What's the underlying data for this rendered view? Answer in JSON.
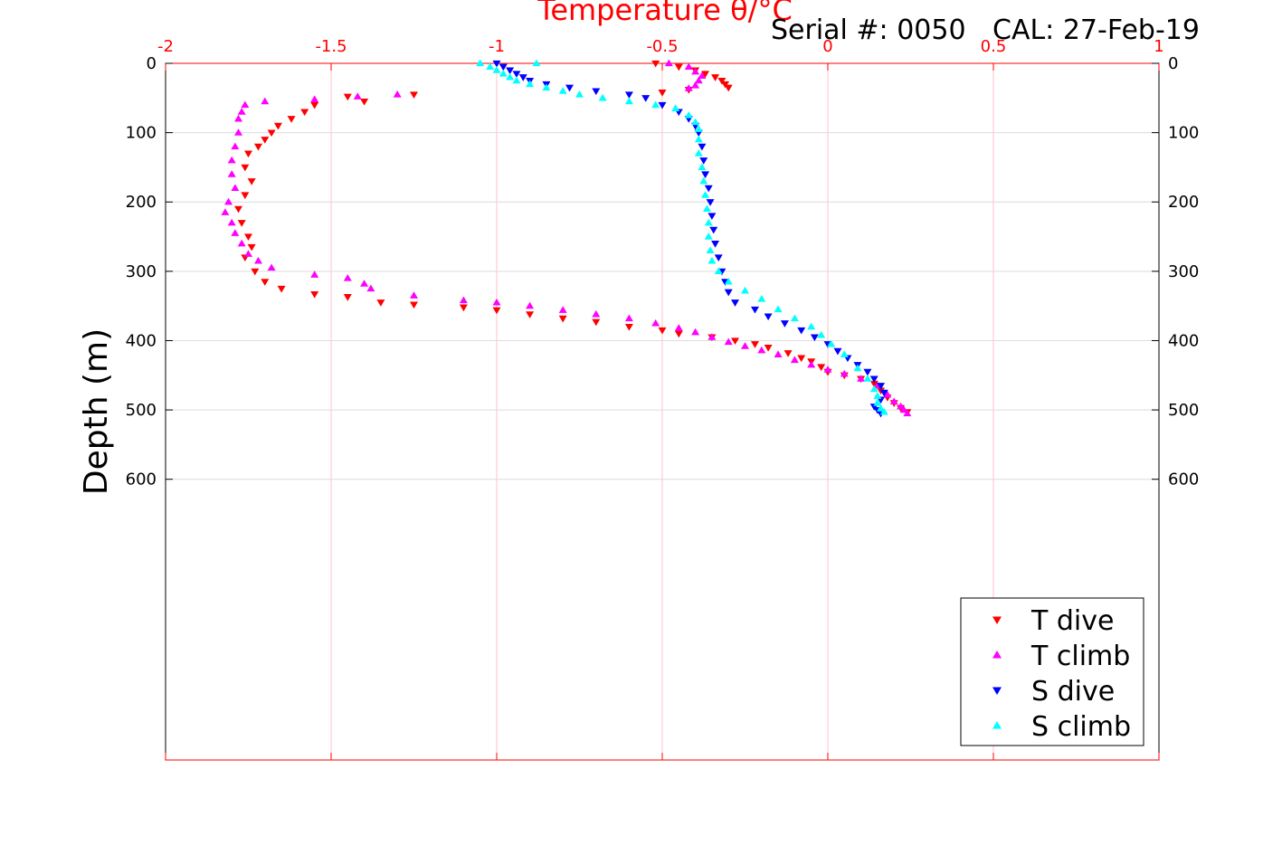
{
  "header": {
    "serial": "Serial #: 0050",
    "cal": "CAL: 27-Feb-19"
  },
  "colors": {
    "t_dive": "#ff0000",
    "t_climb": "#ff00ff",
    "s_dive": "#0000ff",
    "s_climb": "#00ffff",
    "top_axis": "#ff0000",
    "grid_x": "#ffc0cb",
    "grid_y": "#dcdcdc"
  },
  "chart_data": {
    "type": "scatter",
    "title": "Temperature θ/°C",
    "xlabel": "Temperature θ/°C",
    "ylabel": "Depth (m)",
    "xlim": [
      -2,
      1
    ],
    "ylim": [
      0,
      1005
    ],
    "y_reversed": true,
    "x_axis_position": "top",
    "x_ticks": [
      "-2",
      "-1.5",
      "-1",
      "-0.5",
      "0",
      "0.5",
      "1"
    ],
    "x_tick_values": [
      -2,
      -1.5,
      -1,
      -0.5,
      0,
      0.5,
      1
    ],
    "y_ticks": [
      "0",
      "100",
      "200",
      "300",
      "400",
      "500",
      "600"
    ],
    "y_tick_values": [
      0,
      100,
      200,
      300,
      400,
      500,
      600
    ],
    "grid": true,
    "legend_position": "bottom-right",
    "series": [
      {
        "name": "T dive",
        "marker": "triangle-down",
        "points": [
          [
            -0.52,
            0
          ],
          [
            -0.45,
            5
          ],
          [
            -0.4,
            10
          ],
          [
            -0.37,
            15
          ],
          [
            -0.34,
            20
          ],
          [
            -0.32,
            25
          ],
          [
            -0.31,
            30
          ],
          [
            -0.3,
            35
          ],
          [
            -0.42,
            38
          ],
          [
            -0.5,
            42
          ],
          [
            -1.25,
            45
          ],
          [
            -1.45,
            48
          ],
          [
            -1.4,
            55
          ],
          [
            -1.55,
            60
          ],
          [
            -1.58,
            70
          ],
          [
            -1.62,
            80
          ],
          [
            -1.66,
            90
          ],
          [
            -1.68,
            100
          ],
          [
            -1.7,
            110
          ],
          [
            -1.72,
            120
          ],
          [
            -1.75,
            130
          ],
          [
            -1.76,
            150
          ],
          [
            -1.74,
            170
          ],
          [
            -1.76,
            190
          ],
          [
            -1.78,
            210
          ],
          [
            -1.77,
            230
          ],
          [
            -1.75,
            250
          ],
          [
            -1.74,
            265
          ],
          [
            -1.76,
            280
          ],
          [
            -1.73,
            300
          ],
          [
            -1.7,
            315
          ],
          [
            -1.65,
            325
          ],
          [
            -1.55,
            333
          ],
          [
            -1.45,
            337
          ],
          [
            -1.35,
            345
          ],
          [
            -1.25,
            348
          ],
          [
            -1.1,
            352
          ],
          [
            -1.0,
            356
          ],
          [
            -0.9,
            362
          ],
          [
            -0.8,
            368
          ],
          [
            -0.7,
            373
          ],
          [
            -0.6,
            380
          ],
          [
            -0.5,
            385
          ],
          [
            -0.45,
            390
          ],
          [
            -0.35,
            395
          ],
          [
            -0.28,
            400
          ],
          [
            -0.22,
            405
          ],
          [
            -0.18,
            410
          ],
          [
            -0.12,
            418
          ],
          [
            -0.08,
            425
          ],
          [
            -0.05,
            430
          ],
          [
            -0.02,
            438
          ],
          [
            0.0,
            445
          ],
          [
            0.05,
            450
          ],
          [
            0.1,
            455
          ],
          [
            0.14,
            462
          ],
          [
            0.16,
            472
          ],
          [
            0.18,
            482
          ],
          [
            0.2,
            490
          ],
          [
            0.22,
            497
          ],
          [
            0.24,
            503
          ]
        ]
      },
      {
        "name": "T climb",
        "marker": "triangle-up",
        "points": [
          [
            -0.48,
            0
          ],
          [
            -0.42,
            5
          ],
          [
            -0.4,
            12
          ],
          [
            -0.38,
            18
          ],
          [
            -0.39,
            25
          ],
          [
            -0.4,
            32
          ],
          [
            -0.42,
            36
          ],
          [
            -1.3,
            45
          ],
          [
            -1.42,
            48
          ],
          [
            -1.55,
            52
          ],
          [
            -1.7,
            55
          ],
          [
            -1.76,
            60
          ],
          [
            -1.77,
            70
          ],
          [
            -1.78,
            80
          ],
          [
            -1.78,
            100
          ],
          [
            -1.79,
            120
          ],
          [
            -1.8,
            140
          ],
          [
            -1.8,
            160
          ],
          [
            -1.79,
            180
          ],
          [
            -1.81,
            200
          ],
          [
            -1.82,
            215
          ],
          [
            -1.8,
            230
          ],
          [
            -1.79,
            245
          ],
          [
            -1.77,
            260
          ],
          [
            -1.75,
            275
          ],
          [
            -1.72,
            285
          ],
          [
            -1.68,
            295
          ],
          [
            -1.55,
            305
          ],
          [
            -1.45,
            310
          ],
          [
            -1.4,
            318
          ],
          [
            -1.38,
            325
          ],
          [
            -1.25,
            335
          ],
          [
            -1.1,
            342
          ],
          [
            -1.0,
            345
          ],
          [
            -0.9,
            350
          ],
          [
            -0.8,
            356
          ],
          [
            -0.7,
            362
          ],
          [
            -0.6,
            368
          ],
          [
            -0.52,
            375
          ],
          [
            -0.45,
            382
          ],
          [
            -0.4,
            388
          ],
          [
            -0.35,
            395
          ],
          [
            -0.3,
            402
          ],
          [
            -0.25,
            408
          ],
          [
            -0.2,
            414
          ],
          [
            -0.15,
            420
          ],
          [
            -0.1,
            428
          ],
          [
            -0.05,
            435
          ],
          [
            0.0,
            442
          ],
          [
            0.05,
            448
          ],
          [
            0.1,
            455
          ],
          [
            0.15,
            465
          ],
          [
            0.18,
            478
          ],
          [
            0.2,
            488
          ],
          [
            0.22,
            495
          ],
          [
            0.23,
            500
          ],
          [
            0.24,
            505
          ]
        ]
      },
      {
        "name": "S dive",
        "marker": "triangle-down",
        "points": [
          [
            -1.0,
            0
          ],
          [
            -0.98,
            5
          ],
          [
            -0.96,
            10
          ],
          [
            -0.94,
            15
          ],
          [
            -0.92,
            20
          ],
          [
            -0.9,
            25
          ],
          [
            -0.85,
            30
          ],
          [
            -0.78,
            35
          ],
          [
            -0.7,
            40
          ],
          [
            -0.6,
            45
          ],
          [
            -0.55,
            50
          ],
          [
            -0.5,
            60
          ],
          [
            -0.45,
            70
          ],
          [
            -0.42,
            80
          ],
          [
            -0.4,
            90
          ],
          [
            -0.39,
            100
          ],
          [
            -0.38,
            120
          ],
          [
            -0.375,
            140
          ],
          [
            -0.37,
            160
          ],
          [
            -0.36,
            180
          ],
          [
            -0.355,
            200
          ],
          [
            -0.35,
            220
          ],
          [
            -0.345,
            240
          ],
          [
            -0.34,
            260
          ],
          [
            -0.33,
            280
          ],
          [
            -0.32,
            300
          ],
          [
            -0.31,
            315
          ],
          [
            -0.3,
            330
          ],
          [
            -0.28,
            345
          ],
          [
            -0.22,
            355
          ],
          [
            -0.18,
            365
          ],
          [
            -0.13,
            375
          ],
          [
            -0.08,
            385
          ],
          [
            -0.04,
            395
          ],
          [
            0.0,
            405
          ],
          [
            0.03,
            415
          ],
          [
            0.06,
            425
          ],
          [
            0.09,
            435
          ],
          [
            0.12,
            445
          ],
          [
            0.14,
            455
          ],
          [
            0.16,
            465
          ],
          [
            0.17,
            475
          ],
          [
            0.16,
            485
          ],
          [
            0.14,
            495
          ],
          [
            0.15,
            500
          ],
          [
            0.16,
            505
          ]
        ]
      },
      {
        "name": "S climb",
        "marker": "triangle-up",
        "points": [
          [
            -1.05,
            0
          ],
          [
            -0.88,
            0
          ],
          [
            -1.02,
            5
          ],
          [
            -1.0,
            10
          ],
          [
            -0.98,
            15
          ],
          [
            -0.96,
            20
          ],
          [
            -0.94,
            25
          ],
          [
            -0.9,
            30
          ],
          [
            -0.85,
            35
          ],
          [
            -0.8,
            40
          ],
          [
            -0.75,
            45
          ],
          [
            -0.68,
            50
          ],
          [
            -0.6,
            55
          ],
          [
            -0.52,
            60
          ],
          [
            -0.46,
            65
          ],
          [
            -0.42,
            75
          ],
          [
            -0.4,
            85
          ],
          [
            -0.39,
            95
          ],
          [
            -0.39,
            110
          ],
          [
            -0.39,
            130
          ],
          [
            -0.38,
            150
          ],
          [
            -0.375,
            170
          ],
          [
            -0.37,
            190
          ],
          [
            -0.365,
            210
          ],
          [
            -0.36,
            230
          ],
          [
            -0.36,
            250
          ],
          [
            -0.355,
            270
          ],
          [
            -0.35,
            285
          ],
          [
            -0.33,
            300
          ],
          [
            -0.3,
            315
          ],
          [
            -0.25,
            328
          ],
          [
            -0.2,
            340
          ],
          [
            -0.15,
            355
          ],
          [
            -0.1,
            368
          ],
          [
            -0.05,
            380
          ],
          [
            -0.02,
            392
          ],
          [
            0.01,
            405
          ],
          [
            0.05,
            420
          ],
          [
            0.09,
            440
          ],
          [
            0.12,
            455
          ],
          [
            0.14,
            470
          ],
          [
            0.15,
            480
          ],
          [
            0.15,
            490
          ],
          [
            0.16,
            498
          ],
          [
            0.17,
            503
          ]
        ]
      }
    ]
  }
}
